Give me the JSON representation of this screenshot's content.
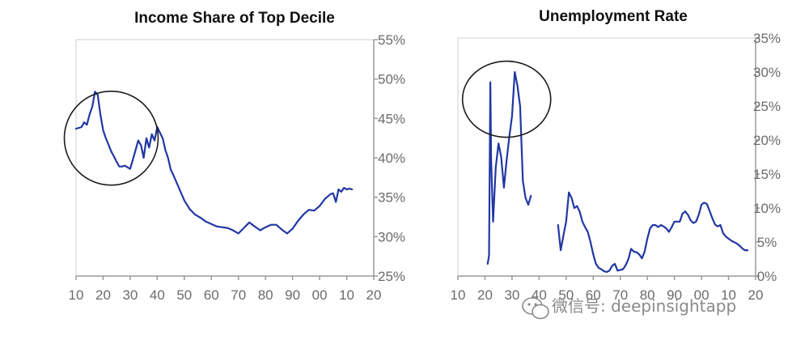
{
  "chart_data": [
    {
      "type": "line",
      "title": "Income Share of Top Decile",
      "x_ticks": [
        "10",
        "20",
        "30",
        "40",
        "50",
        "60",
        "70",
        "80",
        "90",
        "00",
        "10",
        "20"
      ],
      "y_ticks": [
        "25%",
        "30%",
        "35%",
        "40%",
        "45%",
        "50%",
        "55%"
      ],
      "xlim": [
        1910,
        2020
      ],
      "ylim": [
        25,
        55
      ],
      "y_axis_side": "right",
      "grid": false,
      "series": [
        {
          "color": "#2137a3",
          "x": [
            1910,
            1912,
            1913,
            1914,
            1915,
            1916,
            1917,
            1918,
            1919,
            1920,
            1921,
            1922,
            1923,
            1924,
            1925,
            1926,
            1927,
            1928,
            1929,
            1930,
            1931,
            1932,
            1933,
            1934,
            1935,
            1936,
            1937,
            1938,
            1939,
            1940,
            1941,
            1942,
            1943,
            1944,
            1945,
            1946,
            1948,
            1950,
            1952,
            1954,
            1956,
            1958,
            1960,
            1962,
            1964,
            1966,
            1968,
            1970,
            1972,
            1974,
            1976,
            1978,
            1980,
            1982,
            1984,
            1986,
            1988,
            1990,
            1992,
            1994,
            1996,
            1998,
            2000,
            2002,
            2004,
            2005,
            2006,
            2007,
            2008,
            2009,
            2010,
            2011,
            2012
          ],
          "y": [
            43.7,
            43.9,
            44.5,
            44.2,
            45.5,
            46.5,
            48.4,
            48.0,
            45.5,
            43.5,
            42.5,
            41.7,
            40.8,
            40.2,
            39.5,
            38.9,
            38.9,
            39.0,
            38.8,
            38.6,
            39.8,
            41.0,
            42.2,
            41.6,
            40.0,
            42.5,
            41.3,
            43.0,
            42.2,
            43.9,
            43.2,
            42.5,
            41.0,
            40.0,
            38.5,
            37.8,
            36.2,
            34.6,
            33.5,
            32.8,
            32.4,
            31.9,
            31.6,
            31.3,
            31.2,
            31.1,
            30.8,
            30.4,
            31.1,
            31.8,
            31.3,
            30.8,
            31.2,
            31.5,
            31.5,
            30.9,
            30.4,
            31.0,
            32.0,
            32.8,
            33.4,
            33.3,
            33.9,
            34.8,
            35.4,
            35.5,
            34.4,
            36.0,
            35.7,
            36.2,
            36.0,
            36.1,
            36.0
          ]
        }
      ],
      "highlight_circle": {
        "cx": 1923,
        "cy": 42.5
      }
    },
    {
      "type": "line",
      "title": "Unemployment Rate",
      "x_ticks": [
        "10",
        "20",
        "30",
        "40",
        "50",
        "60",
        "70",
        "80",
        "90",
        "00",
        "10",
        "20"
      ],
      "y_ticks": [
        "0%",
        "5%",
        "10%",
        "15%",
        "20%",
        "25%",
        "30%",
        "35%"
      ],
      "xlim": [
        1910,
        2020
      ],
      "ylim": [
        0,
        35
      ],
      "y_axis_side": "right",
      "grid": false,
      "series": [
        {
          "color": "#2137a3",
          "x": [
            1921,
            1921.5,
            1922,
            1922.3,
            1923,
            1924,
            1925,
            1926,
            1927,
            1928,
            1929,
            1930,
            1931,
            1932,
            1933,
            1934,
            1935,
            1936,
            1937
          ],
          "y": [
            1.8,
            3.0,
            28.5,
            17.0,
            8.0,
            16.0,
            19.5,
            17.5,
            13.0,
            17.0,
            20.5,
            23.5,
            30.0,
            28.0,
            25.0,
            14.0,
            11.5,
            10.5,
            11.8
          ]
        },
        {
          "color": "#2137a3",
          "x": [
            1947,
            1948,
            1949,
            1950,
            1951,
            1952,
            1953,
            1954,
            1955,
            1956,
            1957,
            1958,
            1959,
            1960,
            1961,
            1962,
            1963,
            1964,
            1965,
            1966,
            1967,
            1968,
            1969,
            1970,
            1971,
            1972,
            1973,
            1974,
            1975,
            1976,
            1977,
            1978,
            1979,
            1980,
            1981,
            1982,
            1983,
            1984,
            1985,
            1986,
            1987,
            1988,
            1989,
            1990,
            1991,
            1992,
            1993,
            1994,
            1995,
            1996,
            1997,
            1998,
            1999,
            2000,
            2001,
            2002,
            2003,
            2004,
            2005,
            2006,
            2007,
            2008,
            2009,
            2010,
            2011,
            2012,
            2013,
            2014,
            2015,
            2016,
            2017
          ],
          "y": [
            7.5,
            3.8,
            6.0,
            8.0,
            12.3,
            11.5,
            10.0,
            10.3,
            9.5,
            8.0,
            7.2,
            6.5,
            5.0,
            3.2,
            1.8,
            1.2,
            1.0,
            0.7,
            0.6,
            0.8,
            1.5,
            1.8,
            0.8,
            0.9,
            1.0,
            1.6,
            2.5,
            4.0,
            3.6,
            3.5,
            3.2,
            2.6,
            3.6,
            5.5,
            7.0,
            7.5,
            7.5,
            7.2,
            7.5,
            7.3,
            7.0,
            6.5,
            7.2,
            8.0,
            8.0,
            8.0,
            9.2,
            9.5,
            9.0,
            8.2,
            7.8,
            8.0,
            9.0,
            10.5,
            10.8,
            10.6,
            9.6,
            8.5,
            7.6,
            7.3,
            7.5,
            6.3,
            5.8,
            5.5,
            5.2,
            5.0,
            4.8,
            4.5,
            4.1,
            3.8,
            3.8
          ]
        }
      ],
      "highlight_circle": {
        "cx": 1928,
        "cy": 26.0
      }
    }
  ],
  "watermark": {
    "icon": "wechat-icon",
    "text": "微信号: deepinsightapp"
  }
}
